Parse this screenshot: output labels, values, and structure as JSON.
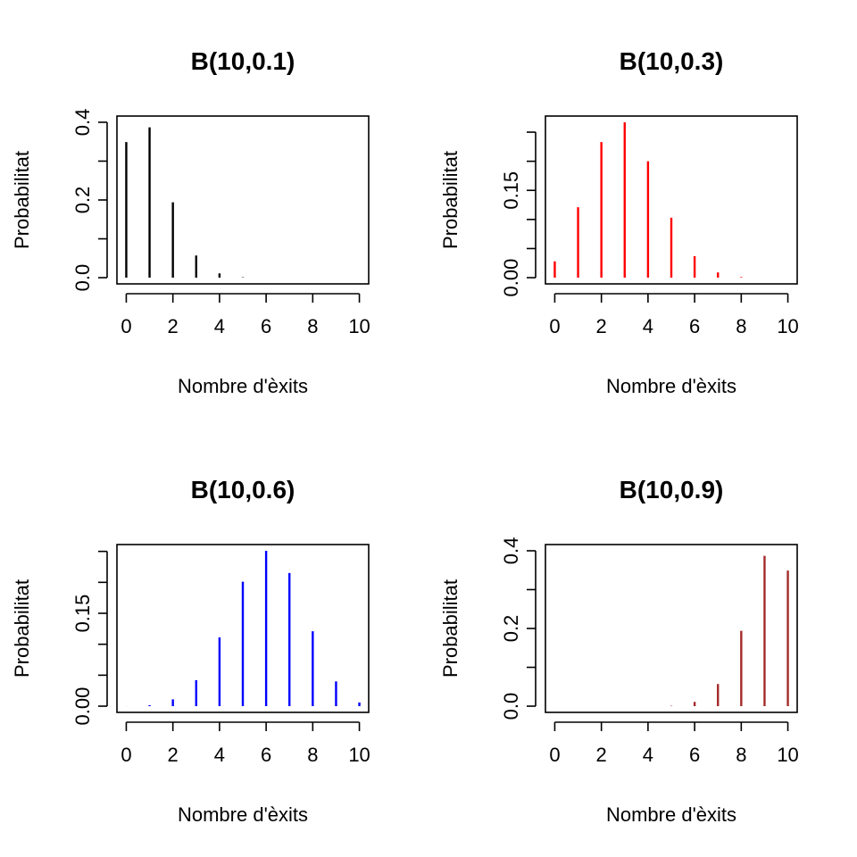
{
  "chart_data": [
    {
      "type": "bar",
      "title": "B(10,0.1)",
      "xlabel": "Nombre d'èxits",
      "ylabel": "Probabilitat",
      "color": "#000000",
      "x": [
        0,
        1,
        2,
        3,
        4,
        5,
        6,
        7,
        8,
        9,
        10
      ],
      "values": [
        0.349,
        0.387,
        0.194,
        0.057,
        0.011,
        0.001,
        0.0,
        0.0,
        0.0,
        0.0,
        0.0
      ],
      "xlim": [
        0,
        10
      ],
      "ylim": [
        0,
        0.4
      ],
      "xticks": [
        0,
        2,
        4,
        6,
        8,
        10
      ],
      "xtick_labels": [
        "0",
        "2",
        "4",
        "6",
        "8",
        "10"
      ],
      "yticks": [
        0,
        0.1,
        0.2,
        0.3,
        0.4
      ],
      "ytick_labels": [
        "0.0",
        "",
        "0.2",
        "",
        "0.4"
      ]
    },
    {
      "type": "bar",
      "title": "B(10,0.3)",
      "xlabel": "Nombre d'èxits",
      "ylabel": "Probabilitat",
      "color": "#ff0000",
      "x": [
        0,
        1,
        2,
        3,
        4,
        5,
        6,
        7,
        8,
        9,
        10
      ],
      "values": [
        0.028,
        0.121,
        0.233,
        0.267,
        0.2,
        0.103,
        0.037,
        0.009,
        0.001,
        0.0,
        0.0
      ],
      "xlim": [
        0,
        10
      ],
      "ylim": [
        0,
        0.267
      ],
      "xticks": [
        0,
        2,
        4,
        6,
        8,
        10
      ],
      "xtick_labels": [
        "0",
        "2",
        "4",
        "6",
        "8",
        "10"
      ],
      "yticks": [
        0,
        0.05,
        0.1,
        0.15,
        0.2,
        0.25
      ],
      "ytick_labels": [
        "0.00",
        "",
        "",
        "0.15",
        "",
        ""
      ]
    },
    {
      "type": "bar",
      "title": "B(10,0.6)",
      "xlabel": "Nombre d'èxits",
      "ylabel": "Probabilitat",
      "color": "#0000ff",
      "x": [
        0,
        1,
        2,
        3,
        4,
        5,
        6,
        7,
        8,
        9,
        10
      ],
      "values": [
        0.0001,
        0.0016,
        0.011,
        0.042,
        0.111,
        0.201,
        0.251,
        0.215,
        0.121,
        0.04,
        0.006
      ],
      "xlim": [
        0,
        10
      ],
      "ylim": [
        0,
        0.251
      ],
      "xticks": [
        0,
        2,
        4,
        6,
        8,
        10
      ],
      "xtick_labels": [
        "0",
        "2",
        "4",
        "6",
        "8",
        "10"
      ],
      "yticks": [
        0,
        0.05,
        0.1,
        0.15,
        0.2,
        0.25
      ],
      "ytick_labels": [
        "0.00",
        "",
        "",
        "0.15",
        "",
        ""
      ]
    },
    {
      "type": "bar",
      "title": "B(10,0.9)",
      "xlabel": "Nombre d'èxits",
      "ylabel": "Probabilitat",
      "color": "#a52a2a",
      "x": [
        0,
        1,
        2,
        3,
        4,
        5,
        6,
        7,
        8,
        9,
        10
      ],
      "values": [
        0.0,
        0.0,
        0.0,
        0.0,
        0.0,
        0.001,
        0.011,
        0.057,
        0.194,
        0.387,
        0.349
      ],
      "xlim": [
        0,
        10
      ],
      "ylim": [
        0,
        0.4
      ],
      "xticks": [
        0,
        2,
        4,
        6,
        8,
        10
      ],
      "xtick_labels": [
        "0",
        "2",
        "4",
        "6",
        "8",
        "10"
      ],
      "yticks": [
        0,
        0.1,
        0.2,
        0.3,
        0.4
      ],
      "ytick_labels": [
        "0.0",
        "",
        "0.2",
        "",
        "0.4"
      ]
    }
  ]
}
